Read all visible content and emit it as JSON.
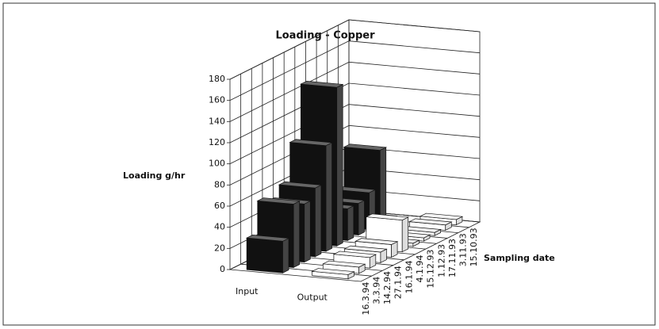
{
  "chart_data": {
    "type": "bar3d",
    "title": "Loading - Copper",
    "ylabel": "Loading g/hr",
    "zlabel": "Sampling date",
    "categories": [
      "16.3.94",
      "3.3.94",
      "14.2.94",
      "27.1.94",
      "16.1.94",
      "4.1.94",
      "15.12.93",
      "1.12.93",
      "17.11.93",
      "3.11.93",
      "15.10.93"
    ],
    "series": [
      {
        "name": "Input",
        "color": "#111111",
        "values": [
          30,
          60,
          55,
          65,
          100,
          150,
          30,
          30,
          35,
          70,
          0
        ]
      },
      {
        "name": "Output",
        "color": "#ffffff",
        "values": [
          4,
          6,
          10,
          10,
          12,
          30,
          3,
          3,
          3,
          5,
          5
        ]
      }
    ],
    "ylim": [
      0,
      180
    ],
    "yticks": [
      0,
      20,
      40,
      60,
      80,
      100,
      120,
      140,
      160,
      180
    ],
    "grid": true
  }
}
